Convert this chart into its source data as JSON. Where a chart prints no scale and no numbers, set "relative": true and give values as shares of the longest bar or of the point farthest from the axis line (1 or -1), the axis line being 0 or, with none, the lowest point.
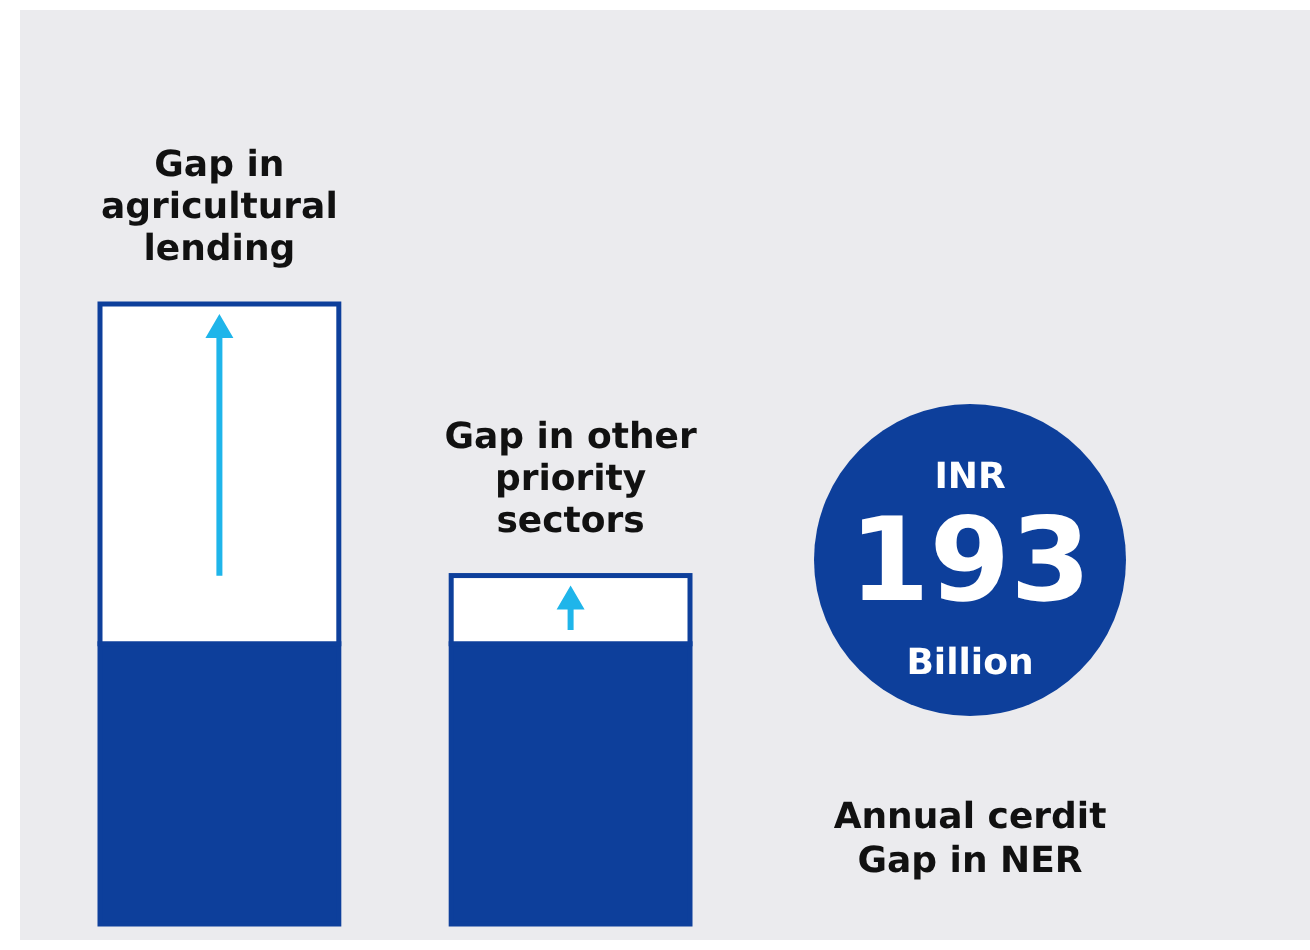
{
  "chart_data": {
    "type": "bar",
    "stacked": true,
    "relative": true,
    "categories": [
      "Gap in agricultural lending",
      "Gap in other priority sectors"
    ],
    "series": [
      {
        "color": "#0d3f9b",
        "values": [
          0.452,
          0.452
        ]
      },
      {
        "color": "#ffffff",
        "values": [
          0.548,
          0.11
        ]
      }
    ],
    "annotations": [
      "INR",
      "193",
      "Billion",
      "Annual cerdit Gap in NER"
    ]
  }
}
